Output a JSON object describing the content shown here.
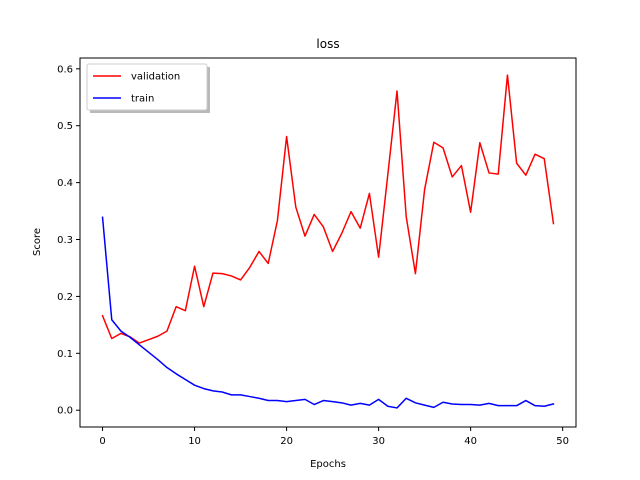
{
  "chart_data": {
    "type": "line",
    "title": "loss",
    "xlabel": "Epochs",
    "ylabel": "Score",
    "xlim": [
      -2.45,
      51.45
    ],
    "ylim": [
      -0.0295,
      0.619
    ],
    "xticks": [
      0,
      10,
      20,
      30,
      40,
      50
    ],
    "yticks": [
      0.0,
      0.1,
      0.2,
      0.3,
      0.4,
      0.5,
      0.6
    ],
    "ytick_labels": [
      "0.0",
      "0.1",
      "0.2",
      "0.3",
      "0.4",
      "0.5",
      "0.6"
    ],
    "grid": false,
    "legend": "upper-left",
    "x": [
      0,
      1,
      2,
      3,
      4,
      5,
      6,
      7,
      8,
      9,
      10,
      11,
      12,
      13,
      14,
      15,
      16,
      17,
      18,
      19,
      20,
      21,
      22,
      23,
      24,
      25,
      26,
      27,
      28,
      29,
      30,
      31,
      32,
      33,
      34,
      35,
      36,
      37,
      38,
      39,
      40,
      41,
      42,
      43,
      44,
      45,
      46,
      47,
      48,
      49
    ],
    "series": [
      {
        "name": "validation",
        "color": "#ff0000",
        "values": [
          0.166,
          0.126,
          0.135,
          0.129,
          0.118,
          0.124,
          0.13,
          0.139,
          0.182,
          0.175,
          0.253,
          0.182,
          0.241,
          0.24,
          0.236,
          0.229,
          0.251,
          0.279,
          0.258,
          0.333,
          0.481,
          0.357,
          0.306,
          0.344,
          0.322,
          0.279,
          0.311,
          0.349,
          0.32,
          0.381,
          0.269,
          0.414,
          0.561,
          0.34,
          0.24,
          0.388,
          0.471,
          0.461,
          0.41,
          0.43,
          0.348,
          0.47,
          0.417,
          0.415,
          0.589,
          0.434,
          0.413,
          0.45,
          0.442,
          0.328
        ]
      },
      {
        "name": "train",
        "color": "#0000ff",
        "values": [
          0.339,
          0.159,
          0.139,
          0.128,
          0.115,
          0.102,
          0.089,
          0.075,
          0.064,
          0.054,
          0.044,
          0.038,
          0.034,
          0.032,
          0.027,
          0.027,
          0.024,
          0.021,
          0.017,
          0.017,
          0.015,
          0.017,
          0.019,
          0.01,
          0.017,
          0.015,
          0.013,
          0.009,
          0.012,
          0.009,
          0.019,
          0.007,
          0.004,
          0.021,
          0.013,
          0.009,
          0.005,
          0.014,
          0.011,
          0.01,
          0.01,
          0.009,
          0.012,
          0.008,
          0.008,
          0.008,
          0.017,
          0.008,
          0.007,
          0.011
        ]
      }
    ]
  }
}
